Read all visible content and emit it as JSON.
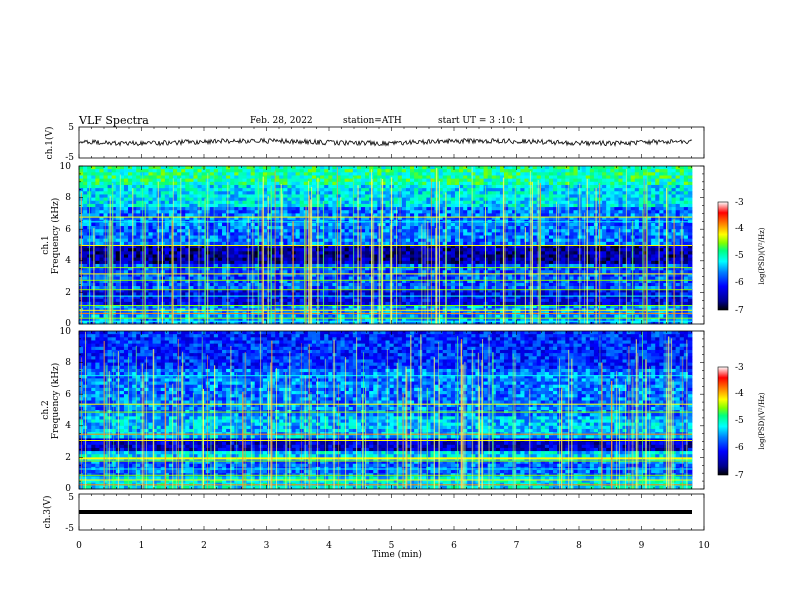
{
  "header": {
    "title": "VLF Spectra",
    "date": "Feb. 28, 2022",
    "station": "station=ATH",
    "start_ut": "start UT = 3 :10: 1"
  },
  "chart_data": [
    {
      "type": "line",
      "name": "ch1-waveform",
      "ylabel": "ch.1(V)",
      "ylim": [
        -5,
        5
      ],
      "yticks": [
        "5",
        "-5"
      ],
      "xlim": [
        0,
        10
      ]
    },
    {
      "type": "heatmap",
      "name": "ch1-spectrogram",
      "ylabel_line1": "ch.1",
      "ylabel_line2": "Frequency (kHz)",
      "ylim": [
        0,
        10
      ],
      "yticks": [
        "0",
        "2",
        "4",
        "6",
        "8",
        "10"
      ],
      "xlim": [
        0,
        9.8
      ],
      "colorbar": {
        "label": "log(PSD)(V²/Hz)",
        "range": [
          -7,
          -3
        ],
        "ticks": [
          "-3",
          "-4",
          "-5",
          "-6",
          "-7"
        ],
        "colors": [
          "#000000",
          "#00008b",
          "#0000ff",
          "#0080ff",
          "#00ffff",
          "#00ff80",
          "#80ff00",
          "#ffff00",
          "#ff8000",
          "#ff0000",
          "#ffffff"
        ]
      }
    },
    {
      "type": "heatmap",
      "name": "ch2-spectrogram",
      "ylabel_line1": "ch.2",
      "ylabel_line2": "Frequency (kHz)",
      "ylim": [
        0,
        10
      ],
      "yticks": [
        "0",
        "2",
        "4",
        "6",
        "8",
        "10"
      ],
      "xlim": [
        0,
        9.8
      ],
      "colorbar": {
        "label": "log(PSD)(V²/Hz)",
        "range": [
          -7,
          -3
        ],
        "ticks": [
          "-3",
          "-4",
          "-5",
          "-6",
          "-7"
        ]
      }
    },
    {
      "type": "line",
      "name": "ch3-waveform",
      "ylabel": "ch.3(V)",
      "ylim": [
        -5,
        5
      ],
      "yticks": [
        "5",
        "-5"
      ],
      "xlim": [
        0,
        10
      ],
      "xlabel": "Time (min)",
      "xticks": [
        "0",
        "1",
        "2",
        "3",
        "4",
        "5",
        "6",
        "7",
        "8",
        "9",
        "10"
      ]
    }
  ]
}
